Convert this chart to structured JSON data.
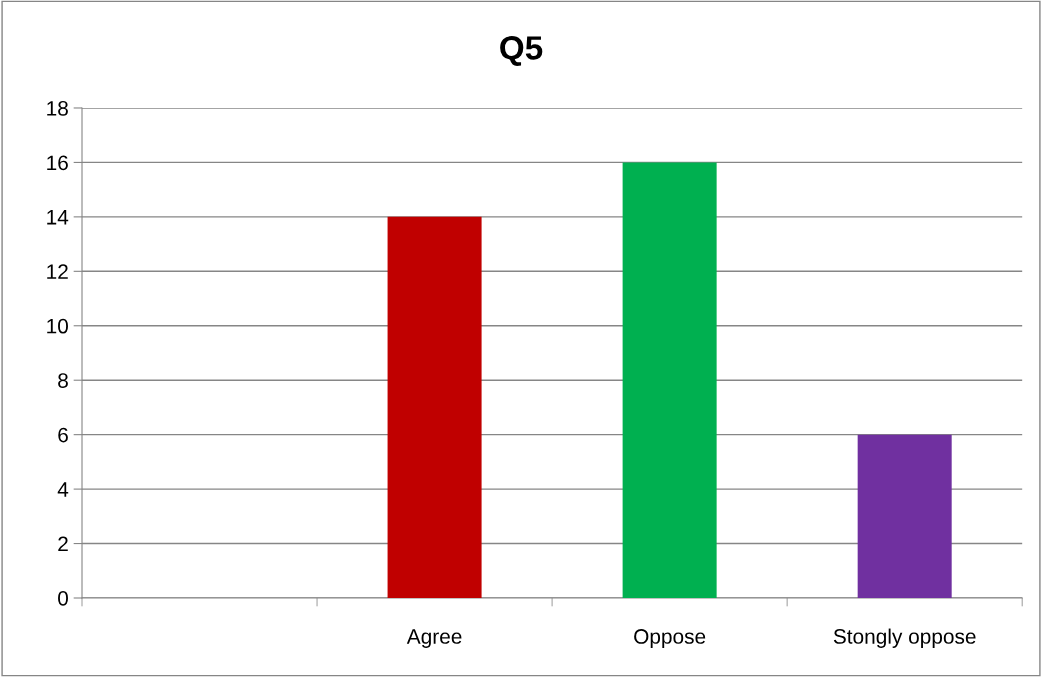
{
  "chart_data": {
    "type": "bar",
    "title": "Q5",
    "categories": [
      null,
      "Agree",
      "Oppose",
      "Stongly oppose"
    ],
    "values": [
      null,
      14,
      16,
      6
    ],
    "colors": [
      null,
      "#c00000",
      "#00b050",
      "#7030a0"
    ],
    "ylim": [
      0,
      18
    ],
    "yticks": [
      0,
      2,
      4,
      6,
      8,
      10,
      12,
      14,
      16,
      18
    ],
    "grid": "y"
  }
}
